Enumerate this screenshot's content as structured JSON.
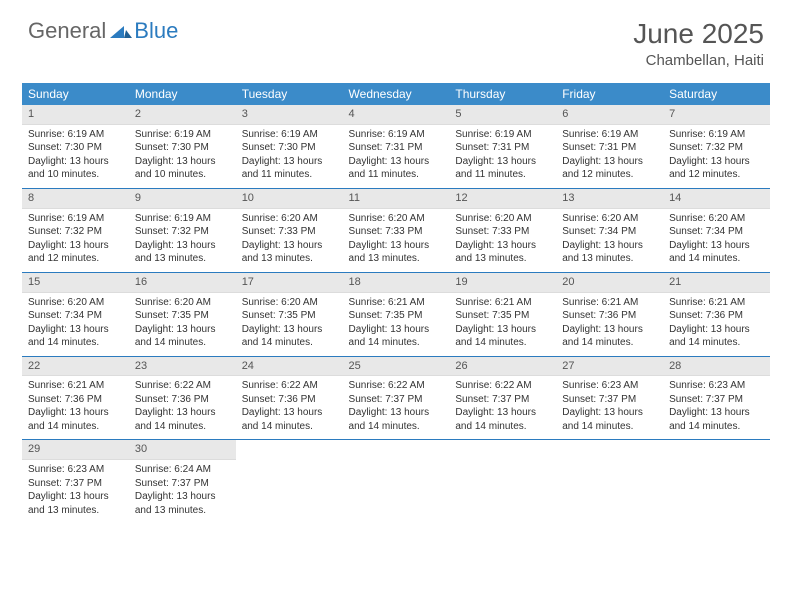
{
  "brand": {
    "part1": "General",
    "part2": "Blue"
  },
  "title": "June 2025",
  "location": "Chambellan, Haiti",
  "colors": {
    "header_bg": "#3b8bc9",
    "header_text": "#ffffff",
    "daynum_bg": "#e8e8e8",
    "row_border": "#2b7bbf",
    "brand_blue": "#2b7bbf",
    "text": "#333333",
    "muted": "#555555",
    "page_bg": "#ffffff"
  },
  "weekdays": [
    "Sunday",
    "Monday",
    "Tuesday",
    "Wednesday",
    "Thursday",
    "Friday",
    "Saturday"
  ],
  "days": [
    {
      "n": 1,
      "sunrise": "6:19 AM",
      "sunset": "7:30 PM",
      "daylight": "13 hours and 10 minutes."
    },
    {
      "n": 2,
      "sunrise": "6:19 AM",
      "sunset": "7:30 PM",
      "daylight": "13 hours and 10 minutes."
    },
    {
      "n": 3,
      "sunrise": "6:19 AM",
      "sunset": "7:30 PM",
      "daylight": "13 hours and 11 minutes."
    },
    {
      "n": 4,
      "sunrise": "6:19 AM",
      "sunset": "7:31 PM",
      "daylight": "13 hours and 11 minutes."
    },
    {
      "n": 5,
      "sunrise": "6:19 AM",
      "sunset": "7:31 PM",
      "daylight": "13 hours and 11 minutes."
    },
    {
      "n": 6,
      "sunrise": "6:19 AM",
      "sunset": "7:31 PM",
      "daylight": "13 hours and 12 minutes."
    },
    {
      "n": 7,
      "sunrise": "6:19 AM",
      "sunset": "7:32 PM",
      "daylight": "13 hours and 12 minutes."
    },
    {
      "n": 8,
      "sunrise": "6:19 AM",
      "sunset": "7:32 PM",
      "daylight": "13 hours and 12 minutes."
    },
    {
      "n": 9,
      "sunrise": "6:19 AM",
      "sunset": "7:32 PM",
      "daylight": "13 hours and 13 minutes."
    },
    {
      "n": 10,
      "sunrise": "6:20 AM",
      "sunset": "7:33 PM",
      "daylight": "13 hours and 13 minutes."
    },
    {
      "n": 11,
      "sunrise": "6:20 AM",
      "sunset": "7:33 PM",
      "daylight": "13 hours and 13 minutes."
    },
    {
      "n": 12,
      "sunrise": "6:20 AM",
      "sunset": "7:33 PM",
      "daylight": "13 hours and 13 minutes."
    },
    {
      "n": 13,
      "sunrise": "6:20 AM",
      "sunset": "7:34 PM",
      "daylight": "13 hours and 13 minutes."
    },
    {
      "n": 14,
      "sunrise": "6:20 AM",
      "sunset": "7:34 PM",
      "daylight": "13 hours and 14 minutes."
    },
    {
      "n": 15,
      "sunrise": "6:20 AM",
      "sunset": "7:34 PM",
      "daylight": "13 hours and 14 minutes."
    },
    {
      "n": 16,
      "sunrise": "6:20 AM",
      "sunset": "7:35 PM",
      "daylight": "13 hours and 14 minutes."
    },
    {
      "n": 17,
      "sunrise": "6:20 AM",
      "sunset": "7:35 PM",
      "daylight": "13 hours and 14 minutes."
    },
    {
      "n": 18,
      "sunrise": "6:21 AM",
      "sunset": "7:35 PM",
      "daylight": "13 hours and 14 minutes."
    },
    {
      "n": 19,
      "sunrise": "6:21 AM",
      "sunset": "7:35 PM",
      "daylight": "13 hours and 14 minutes."
    },
    {
      "n": 20,
      "sunrise": "6:21 AM",
      "sunset": "7:36 PM",
      "daylight": "13 hours and 14 minutes."
    },
    {
      "n": 21,
      "sunrise": "6:21 AM",
      "sunset": "7:36 PM",
      "daylight": "13 hours and 14 minutes."
    },
    {
      "n": 22,
      "sunrise": "6:21 AM",
      "sunset": "7:36 PM",
      "daylight": "13 hours and 14 minutes."
    },
    {
      "n": 23,
      "sunrise": "6:22 AM",
      "sunset": "7:36 PM",
      "daylight": "13 hours and 14 minutes."
    },
    {
      "n": 24,
      "sunrise": "6:22 AM",
      "sunset": "7:36 PM",
      "daylight": "13 hours and 14 minutes."
    },
    {
      "n": 25,
      "sunrise": "6:22 AM",
      "sunset": "7:37 PM",
      "daylight": "13 hours and 14 minutes."
    },
    {
      "n": 26,
      "sunrise": "6:22 AM",
      "sunset": "7:37 PM",
      "daylight": "13 hours and 14 minutes."
    },
    {
      "n": 27,
      "sunrise": "6:23 AM",
      "sunset": "7:37 PM",
      "daylight": "13 hours and 14 minutes."
    },
    {
      "n": 28,
      "sunrise": "6:23 AM",
      "sunset": "7:37 PM",
      "daylight": "13 hours and 14 minutes."
    },
    {
      "n": 29,
      "sunrise": "6:23 AM",
      "sunset": "7:37 PM",
      "daylight": "13 hours and 13 minutes."
    },
    {
      "n": 30,
      "sunrise": "6:24 AM",
      "sunset": "7:37 PM",
      "daylight": "13 hours and 13 minutes."
    }
  ],
  "labels": {
    "sunrise": "Sunrise:",
    "sunset": "Sunset:",
    "daylight": "Daylight:"
  },
  "layout": {
    "start_weekday": 0,
    "columns": 7
  }
}
